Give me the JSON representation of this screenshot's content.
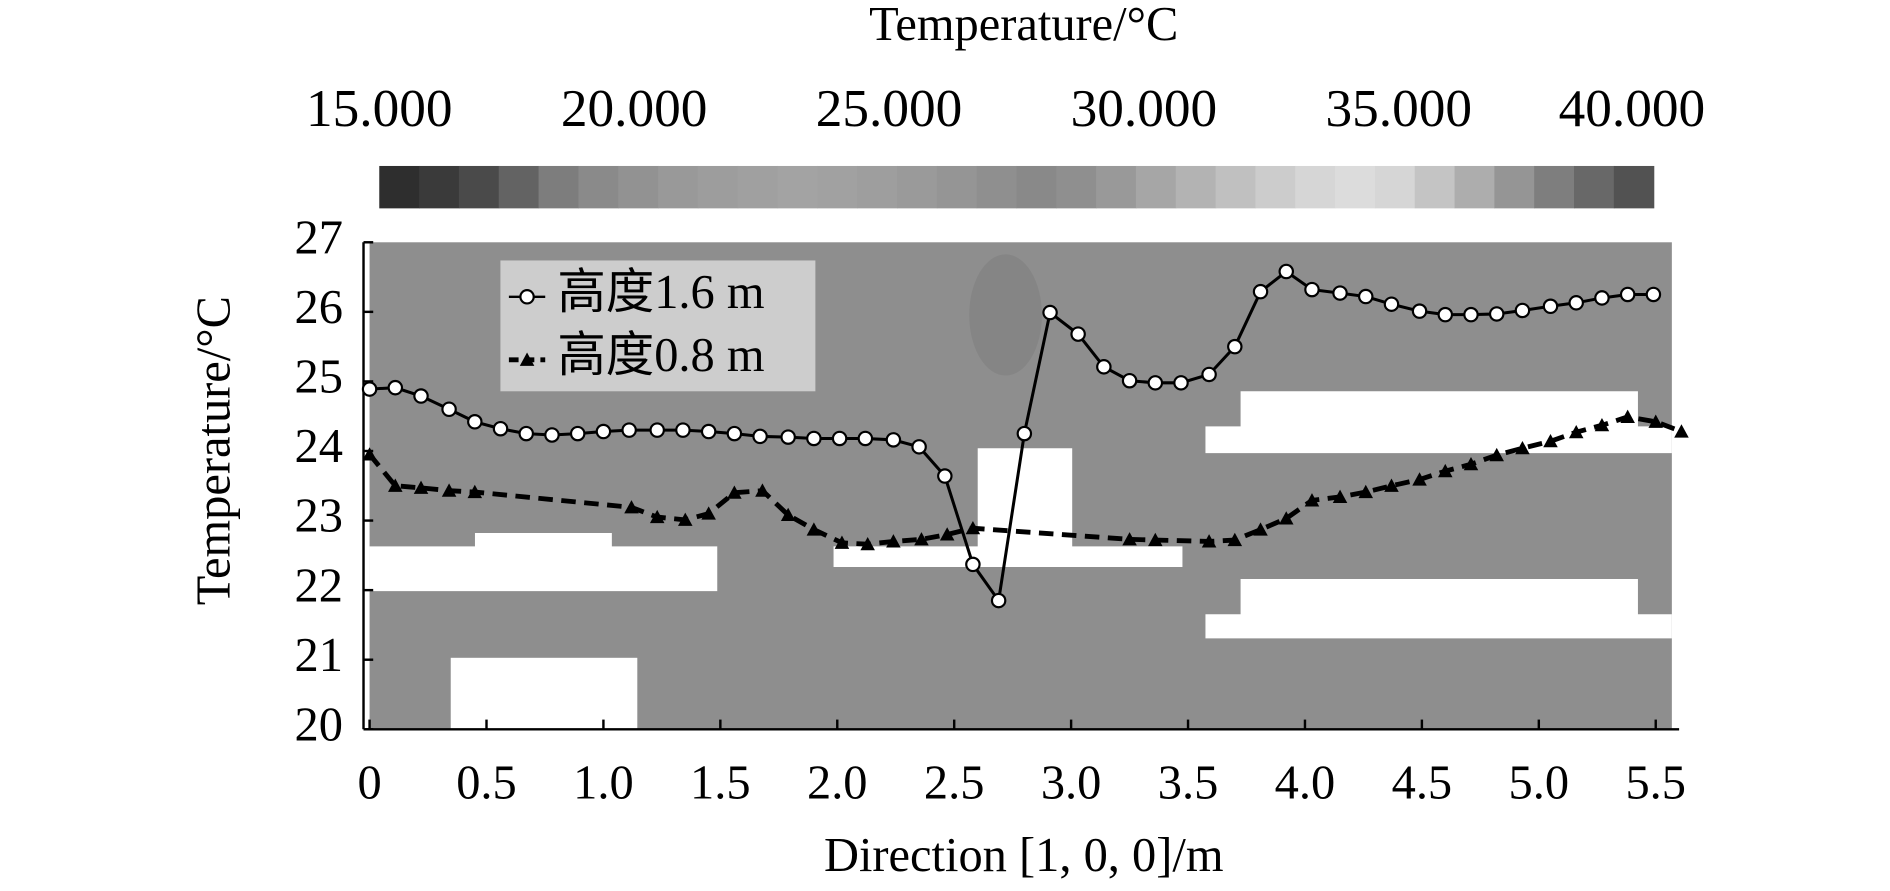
{
  "chart_data": {
    "type": "line",
    "xlabel": "Direction [1, 0, 0]/m",
    "ylabel": "Temperature/°C",
    "xlim": [
      0,
      5.6
    ],
    "ylim": [
      20,
      27
    ],
    "xticks": [
      0,
      0.5,
      {
        "value": 1,
        "label": "1.0"
      },
      1.5,
      {
        "value": 2,
        "label": "2.0"
      },
      2.5,
      {
        "value": 3,
        "label": "3.0"
      },
      3.5,
      {
        "value": 4,
        "label": "4.0"
      },
      4.5,
      {
        "value": 5,
        "label": "5.0"
      },
      5.5
    ],
    "yticks": [
      20,
      21,
      22,
      23,
      24,
      25,
      26,
      27
    ],
    "legend": "upper left",
    "colorbar": {
      "title": "Temperature/°C",
      "range": [
        15,
        40
      ],
      "ticks": [
        {
          "value": 15,
          "label": "15.000"
        },
        {
          "value": 20,
          "label": "20.000"
        },
        {
          "value": 25,
          "label": "25.000"
        },
        {
          "value": 30,
          "label": "30.000"
        },
        {
          "value": 35,
          "label": "35.000"
        },
        {
          "value": 40,
          "label": "40.000"
        }
      ],
      "colors": [
        "#2e2e2e",
        "#3a3a3a",
        "#4a4a4a",
        "#636363",
        "#7d7d7d",
        "#8a8a8a",
        "#929292",
        "#999999",
        "#9d9d9d",
        "#a0a0a0",
        "#a3a3a3",
        "#a1a1a1",
        "#9e9e9e",
        "#9a9a9a",
        "#959595",
        "#8f8f8f",
        "#898989",
        "#8f8f8f",
        "#999999",
        "#a6a6a6",
        "#b3b3b3",
        "#c0c0c0",
        "#cccccc",
        "#d6d6d6",
        "#dcdcdc",
        "#d6d6d6",
        "#c4c4c4",
        "#adadad",
        "#959595",
        "#7e7e7e",
        "#686868",
        "#525252"
      ]
    },
    "series": [
      {
        "name": "高度1.6 m",
        "color": "#000000",
        "marker": "circle",
        "dash": false,
        "x": [
          0,
          0.11,
          0.22,
          0.34,
          0.45,
          0.56,
          0.67,
          0.78,
          0.89,
          1.0,
          1.11,
          1.23,
          1.34,
          1.45,
          1.56,
          1.67,
          1.79,
          1.9,
          2.01,
          2.12,
          2.24,
          2.35,
          2.46,
          2.58,
          2.69,
          2.8,
          2.91,
          3.03,
          3.14,
          3.25,
          3.36,
          3.47,
          3.59,
          3.7,
          3.81,
          3.92,
          4.03,
          4.15,
          4.26,
          4.37,
          4.49,
          4.6,
          4.71,
          4.82,
          4.93,
          5.05,
          5.16,
          5.27,
          5.38,
          5.49
        ],
        "values": [
          24.89,
          24.91,
          24.79,
          24.6,
          24.42,
          24.32,
          24.25,
          24.23,
          24.25,
          24.28,
          24.3,
          24.3,
          24.3,
          24.28,
          24.25,
          24.21,
          24.2,
          24.18,
          24.18,
          24.18,
          24.16,
          24.06,
          23.64,
          22.37,
          21.85,
          24.25,
          25.99,
          25.68,
          25.21,
          25.01,
          24.98,
          24.98,
          25.1,
          25.5,
          26.29,
          26.58,
          26.32,
          26.27,
          26.22,
          26.11,
          26.01,
          25.96,
          25.96,
          25.97,
          26.02,
          26.08,
          26.13,
          26.2,
          26.25,
          26.25
        ]
      },
      {
        "name": "高度0.8 m",
        "color": "#000000",
        "marker": "triangle",
        "dash": true,
        "x": [
          0,
          0.11,
          0.22,
          0.34,
          0.45,
          1.12,
          1.23,
          1.35,
          1.45,
          1.56,
          1.68,
          1.79,
          1.9,
          2.02,
          2.13,
          2.24,
          2.36,
          2.47,
          2.58,
          3.25,
          3.36,
          3.59,
          3.7,
          3.81,
          3.92,
          4.03,
          4.15,
          4.26,
          4.37,
          4.49,
          4.6,
          4.71,
          4.82,
          4.93,
          5.05,
          5.16,
          5.27,
          5.38,
          5.5,
          5.61
        ],
        "values": [
          23.95,
          23.5,
          23.47,
          23.43,
          23.41,
          23.19,
          23.05,
          23.01,
          23.1,
          23.4,
          23.43,
          23.08,
          22.87,
          22.68,
          22.66,
          22.7,
          22.73,
          22.8,
          22.89,
          22.73,
          22.72,
          22.7,
          22.72,
          22.87,
          23.03,
          23.29,
          23.34,
          23.41,
          23.5,
          23.59,
          23.71,
          23.81,
          23.94,
          24.04,
          24.14,
          24.27,
          24.37,
          24.49,
          24.42,
          24.28
        ]
      }
    ]
  }
}
